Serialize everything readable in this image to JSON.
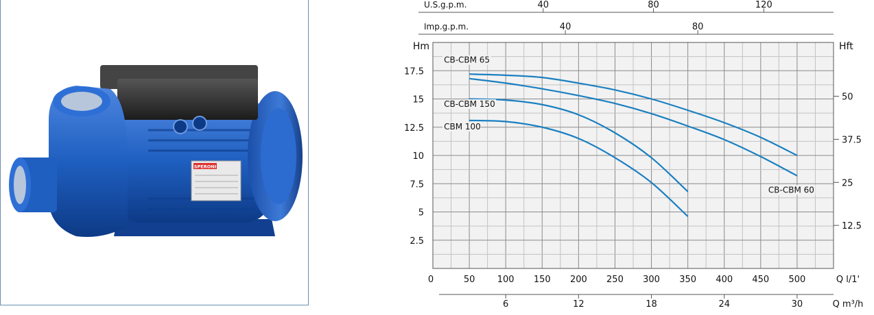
{
  "product_photo": {
    "brand_label": "SPERONI",
    "colors": {
      "body": "#1f5fc0",
      "body_dark": "#0d3a86",
      "box": "#2a2a2a"
    }
  },
  "chart_data": {
    "type": "line",
    "title": "",
    "xlabel": "Q l/1'",
    "ylabel": "Hm",
    "y2label": "Hft",
    "xlim": [
      0,
      550
    ],
    "ylim": [
      0,
      20
    ],
    "x_ticks": [
      0,
      50,
      100,
      150,
      200,
      250,
      300,
      350,
      400,
      450,
      500
    ],
    "y_ticks": [
      2.5,
      5,
      7.5,
      10,
      12.5,
      15,
      17.5
    ],
    "y_tick_labels": [
      "2.5",
      "5",
      "7.5",
      "10",
      "12.5",
      "15",
      "17.5"
    ],
    "y2_ticks": [
      12.5,
      25,
      37.5,
      50
    ],
    "y2_tick_labels": [
      "12.5",
      "25",
      "37.5",
      "50"
    ],
    "secondary_axes": [
      {
        "label": "Q m³/h",
        "ticks": [
          6,
          12,
          18,
          24,
          30
        ],
        "tick_labels": [
          "6",
          "12",
          "18",
          "24",
          "30"
        ]
      },
      {
        "label": "U.S.g.p.m.",
        "ticks": [
          40,
          80,
          120
        ],
        "tick_labels": [
          "40",
          "80",
          "120"
        ]
      },
      {
        "label": "Imp.g.p.m.",
        "ticks": [
          40,
          80
        ],
        "tick_labels": [
          "40",
          "80"
        ]
      }
    ],
    "grid": true,
    "series": [
      {
        "name": "CB-CBM 65",
        "x": [
          50,
          100,
          150,
          200,
          250,
          300,
          350,
          400,
          450,
          500
        ],
        "y": [
          17.2,
          17.1,
          16.9,
          16.4,
          15.8,
          15.0,
          14.0,
          12.9,
          11.6,
          10.0
        ]
      },
      {
        "name": "CB-CBM 60",
        "x": [
          50,
          100,
          150,
          200,
          250,
          300,
          350,
          400,
          450,
          500
        ],
        "y": [
          16.8,
          16.4,
          15.9,
          15.3,
          14.6,
          13.7,
          12.6,
          11.4,
          9.9,
          8.2
        ]
      },
      {
        "name": "CB-CBM 150",
        "x": [
          50,
          100,
          150,
          200,
          250,
          300,
          350
        ],
        "y": [
          15.0,
          14.9,
          14.5,
          13.6,
          12.0,
          9.8,
          6.8
        ]
      },
      {
        "name": "CBM 100",
        "x": [
          50,
          100,
          150,
          200,
          250,
          300,
          350
        ],
        "y": [
          13.1,
          13.0,
          12.5,
          11.5,
          9.8,
          7.6,
          4.6
        ]
      }
    ],
    "line_color": "#1a7fc1"
  }
}
